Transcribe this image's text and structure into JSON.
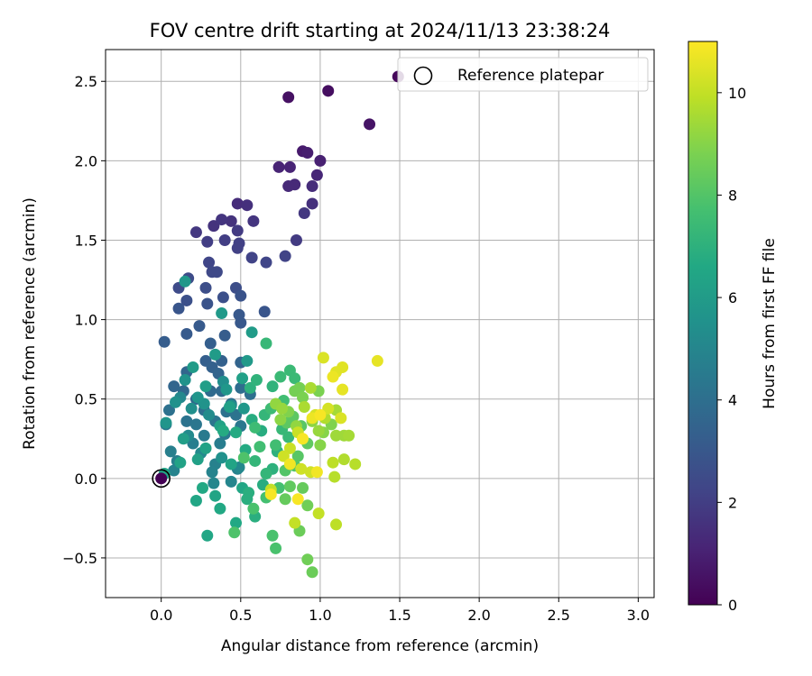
{
  "chart_data": {
    "type": "scatter",
    "title": "FOV centre drift starting at 2024/11/13 23:38:24",
    "xlabel": "Angular distance from reference (arcmin)",
    "ylabel": "Rotation from reference (arcmin)",
    "xlim": [
      -0.35,
      3.1
    ],
    "ylim": [
      -0.75,
      2.7
    ],
    "xticks": [
      "0.0",
      "0.5",
      "1.0",
      "1.5",
      "2.0",
      "2.5",
      "3.0"
    ],
    "xtick_values": [
      0,
      0.5,
      1.0,
      1.5,
      2.0,
      2.5,
      3.0
    ],
    "yticks": [
      "−0.5",
      "0.0",
      "0.5",
      "1.0",
      "1.5",
      "2.0",
      "2.5"
    ],
    "ytick_values": [
      -0.5,
      0,
      0.5,
      1.0,
      1.5,
      2.0,
      2.5
    ],
    "grid": true,
    "legend": {
      "position": "top-right",
      "entries": [
        {
          "label": "Reference platepar",
          "marker": "open-circle"
        }
      ]
    },
    "reference_point": {
      "x": 0.0,
      "y": 0.0
    },
    "colorbar": {
      "label": "Hours from first FF file",
      "range": [
        0,
        11
      ],
      "ticks": [
        "0",
        "2",
        "4",
        "6",
        "8",
        "10"
      ],
      "tick_values": [
        0,
        2,
        4,
        6,
        8,
        10
      ],
      "colormap": "viridis"
    },
    "points": [
      {
        "x": 1.49,
        "y": 2.53,
        "c": 0.2
      },
      {
        "x": 1.05,
        "y": 2.44,
        "c": 0.4
      },
      {
        "x": 0.8,
        "y": 2.4,
        "c": 0.5
      },
      {
        "x": 1.31,
        "y": 2.23,
        "c": 0.6
      },
      {
        "x": 0.89,
        "y": 2.06,
        "c": 0.8
      },
      {
        "x": 0.92,
        "y": 2.05,
        "c": 0.9
      },
      {
        "x": 1.0,
        "y": 2.0,
        "c": 1.0
      },
      {
        "x": 0.74,
        "y": 1.96,
        "c": 1.1
      },
      {
        "x": 0.81,
        "y": 1.96,
        "c": 1.1
      },
      {
        "x": 0.98,
        "y": 1.91,
        "c": 1.2
      },
      {
        "x": 0.84,
        "y": 1.85,
        "c": 1.3
      },
      {
        "x": 0.8,
        "y": 1.84,
        "c": 1.3
      },
      {
        "x": 0.95,
        "y": 1.84,
        "c": 1.4
      },
      {
        "x": 0.48,
        "y": 1.73,
        "c": 1.4
      },
      {
        "x": 0.54,
        "y": 1.72,
        "c": 1.5
      },
      {
        "x": 0.95,
        "y": 1.73,
        "c": 1.5
      },
      {
        "x": 0.44,
        "y": 1.62,
        "c": 1.6
      },
      {
        "x": 0.33,
        "y": 1.59,
        "c": 1.6
      },
      {
        "x": 0.38,
        "y": 1.63,
        "c": 1.7
      },
      {
        "x": 0.58,
        "y": 1.62,
        "c": 1.7
      },
      {
        "x": 0.9,
        "y": 1.67,
        "c": 1.8
      },
      {
        "x": 0.22,
        "y": 1.55,
        "c": 1.8
      },
      {
        "x": 0.48,
        "y": 1.56,
        "c": 1.9
      },
      {
        "x": 0.85,
        "y": 1.5,
        "c": 1.9
      },
      {
        "x": 0.29,
        "y": 1.49,
        "c": 2.0
      },
      {
        "x": 0.4,
        "y": 1.5,
        "c": 2.0
      },
      {
        "x": 0.49,
        "y": 1.48,
        "c": 2.1
      },
      {
        "x": 0.48,
        "y": 1.45,
        "c": 2.1
      },
      {
        "x": 0.78,
        "y": 1.4,
        "c": 2.2
      },
      {
        "x": 0.57,
        "y": 1.39,
        "c": 2.2
      },
      {
        "x": 0.3,
        "y": 1.36,
        "c": 2.3
      },
      {
        "x": 0.66,
        "y": 1.36,
        "c": 2.3
      },
      {
        "x": 0.32,
        "y": 1.3,
        "c": 2.4
      },
      {
        "x": 0.35,
        "y": 1.3,
        "c": 2.4
      },
      {
        "x": 0.17,
        "y": 1.26,
        "c": 2.5
      },
      {
        "x": 0.11,
        "y": 1.2,
        "c": 2.5
      },
      {
        "x": 0.28,
        "y": 1.2,
        "c": 2.6
      },
      {
        "x": 0.47,
        "y": 1.2,
        "c": 2.6
      },
      {
        "x": 0.16,
        "y": 1.12,
        "c": 2.7
      },
      {
        "x": 0.39,
        "y": 1.14,
        "c": 2.7
      },
      {
        "x": 0.5,
        "y": 1.15,
        "c": 2.8
      },
      {
        "x": 0.29,
        "y": 1.1,
        "c": 2.8
      },
      {
        "x": 0.11,
        "y": 1.07,
        "c": 2.9
      },
      {
        "x": 0.65,
        "y": 1.05,
        "c": 2.9
      },
      {
        "x": 0.49,
        "y": 1.03,
        "c": 3.0
      },
      {
        "x": 0.5,
        "y": 0.98,
        "c": 3.0
      },
      {
        "x": 0.24,
        "y": 0.96,
        "c": 3.1
      },
      {
        "x": 0.16,
        "y": 0.91,
        "c": 3.1
      },
      {
        "x": 0.4,
        "y": 0.9,
        "c": 3.2
      },
      {
        "x": 0.02,
        "y": 0.86,
        "c": 3.2
      },
      {
        "x": 0.31,
        "y": 0.85,
        "c": 3.3
      },
      {
        "x": 0.28,
        "y": 0.74,
        "c": 3.3
      },
      {
        "x": 0.38,
        "y": 0.74,
        "c": 3.4
      },
      {
        "x": 0.32,
        "y": 0.7,
        "c": 3.4
      },
      {
        "x": 0.36,
        "y": 0.66,
        "c": 3.5
      },
      {
        "x": 0.5,
        "y": 0.73,
        "c": 3.5
      },
      {
        "x": 0.16,
        "y": 0.67,
        "c": 3.6
      },
      {
        "x": 0.08,
        "y": 0.58,
        "c": 3.6
      },
      {
        "x": 0.14,
        "y": 0.55,
        "c": 3.7
      },
      {
        "x": 0.22,
        "y": 0.5,
        "c": 3.7
      },
      {
        "x": 0.31,
        "y": 0.55,
        "c": 3.8
      },
      {
        "x": 0.38,
        "y": 0.55,
        "c": 3.8
      },
      {
        "x": 0.5,
        "y": 0.57,
        "c": 3.9
      },
      {
        "x": 0.44,
        "y": 0.47,
        "c": 3.9
      },
      {
        "x": 0.56,
        "y": 0.53,
        "c": 4.0
      },
      {
        "x": 0.27,
        "y": 0.43,
        "c": 4.0
      },
      {
        "x": 0.41,
        "y": 0.42,
        "c": 4.1
      },
      {
        "x": 0.05,
        "y": 0.43,
        "c": 4.1
      },
      {
        "x": 0.47,
        "y": 0.4,
        "c": 4.2
      },
      {
        "x": 0.16,
        "y": 0.36,
        "c": 4.2
      },
      {
        "x": 0.22,
        "y": 0.34,
        "c": 4.3
      },
      {
        "x": 0.34,
        "y": 0.36,
        "c": 4.3
      },
      {
        "x": 0.5,
        "y": 0.33,
        "c": 4.4
      },
      {
        "x": 0.03,
        "y": 0.34,
        "c": 4.4
      },
      {
        "x": 0.27,
        "y": 0.27,
        "c": 4.5
      },
      {
        "x": 0.4,
        "y": 0.28,
        "c": 4.5
      },
      {
        "x": 0.2,
        "y": 0.22,
        "c": 4.6
      },
      {
        "x": 0.37,
        "y": 0.22,
        "c": 4.6
      },
      {
        "x": 0.06,
        "y": 0.17,
        "c": 4.7
      },
      {
        "x": 0.1,
        "y": 0.11,
        "c": 4.7
      },
      {
        "x": 0.34,
        "y": 0.09,
        "c": 4.8
      },
      {
        "x": 0.48,
        "y": 0.06,
        "c": 4.8
      },
      {
        "x": 0.08,
        "y": 0.05,
        "c": 4.9
      },
      {
        "x": 0.32,
        "y": 0.04,
        "c": 4.9
      },
      {
        "x": 0.44,
        "y": -0.02,
        "c": 5.0
      },
      {
        "x": 0.33,
        "y": -0.03,
        "c": 5.0
      },
      {
        "x": 0.49,
        "y": 0.07,
        "c": 5.1
      },
      {
        "x": 0.12,
        "y": 0.51,
        "c": 5.1
      },
      {
        "x": 0.17,
        "y": 0.27,
        "c": 5.2
      },
      {
        "x": 0.25,
        "y": 0.16,
        "c": 5.2
      },
      {
        "x": 0.3,
        "y": 0.4,
        "c": 5.3
      },
      {
        "x": 0.44,
        "y": 0.46,
        "c": 5.3
      },
      {
        "x": 0.19,
        "y": 0.44,
        "c": 5.4
      },
      {
        "x": 0.39,
        "y": 0.61,
        "c": 5.4
      },
      {
        "x": 0.09,
        "y": 0.48,
        "c": 5.5
      },
      {
        "x": 0.38,
        "y": 0.13,
        "c": 5.5
      },
      {
        "x": 0.27,
        "y": 0.47,
        "c": 5.6
      },
      {
        "x": 0.15,
        "y": 0.62,
        "c": 5.6
      },
      {
        "x": 0.23,
        "y": 0.51,
        "c": 5.7
      },
      {
        "x": 0.03,
        "y": 0.35,
        "c": 5.7
      },
      {
        "x": 0.52,
        "y": 0.44,
        "c": 5.8
      },
      {
        "x": 0.41,
        "y": 0.56,
        "c": 5.8
      },
      {
        "x": 0.15,
        "y": 1.24,
        "c": 5.8
      },
      {
        "x": 0.38,
        "y": 1.04,
        "c": 5.9
      },
      {
        "x": 0.54,
        "y": 0.74,
        "c": 5.9
      },
      {
        "x": 0.57,
        "y": 0.92,
        "c": 6.0
      },
      {
        "x": 0.2,
        "y": 0.7,
        "c": 6.0
      },
      {
        "x": 0.34,
        "y": 0.78,
        "c": 6.0
      },
      {
        "x": 0.28,
        "y": 0.58,
        "c": 6.1
      },
      {
        "x": 0.14,
        "y": 0.25,
        "c": 6.1
      },
      {
        "x": 0.23,
        "y": 0.12,
        "c": 6.2
      },
      {
        "x": 0.43,
        "y": 0.45,
        "c": 6.2
      },
      {
        "x": 0.51,
        "y": 0.63,
        "c": 6.2
      },
      {
        "x": 0.37,
        "y": 0.33,
        "c": 6.3
      },
      {
        "x": 0.28,
        "y": 0.19,
        "c": 6.3
      },
      {
        "x": 0.12,
        "y": 0.1,
        "c": 6.3
      },
      {
        "x": 0.44,
        "y": 0.09,
        "c": 6.4
      },
      {
        "x": 0.02,
        "y": 0.03,
        "c": 6.4
      },
      {
        "x": 0.34,
        "y": -0.11,
        "c": 6.4
      },
      {
        "x": 0.51,
        "y": -0.06,
        "c": 6.5
      },
      {
        "x": 0.22,
        "y": -0.14,
        "c": 6.5
      },
      {
        "x": 0.29,
        "y": -0.36,
        "c": 6.5
      },
      {
        "x": 0.47,
        "y": -0.28,
        "c": 6.6
      },
      {
        "x": 0.37,
        "y": -0.19,
        "c": 6.6
      },
      {
        "x": 0.26,
        "y": -0.06,
        "c": 6.6
      },
      {
        "x": 0.47,
        "y": 0.29,
        "c": 6.7
      },
      {
        "x": 0.39,
        "y": 0.3,
        "c": 6.7
      },
      {
        "x": 0.53,
        "y": 0.18,
        "c": 6.7
      },
      {
        "x": 0.57,
        "y": 0.37,
        "c": 6.8
      },
      {
        "x": 0.63,
        "y": 0.3,
        "c": 6.8
      },
      {
        "x": 0.64,
        "y": -0.04,
        "c": 6.8
      },
      {
        "x": 0.55,
        "y": -0.09,
        "c": 6.9
      },
      {
        "x": 0.54,
        "y": -0.13,
        "c": 6.9
      },
      {
        "x": 0.59,
        "y": -0.24,
        "c": 6.9
      },
      {
        "x": 0.7,
        "y": 0.06,
        "c": 7.0
      },
      {
        "x": 0.73,
        "y": 0.17,
        "c": 7.0
      },
      {
        "x": 0.56,
        "y": 0.57,
        "c": 7.0
      },
      {
        "x": 0.6,
        "y": 0.62,
        "c": 7.1
      },
      {
        "x": 0.7,
        "y": 0.58,
        "c": 7.1
      },
      {
        "x": 0.65,
        "y": 0.4,
        "c": 7.2
      },
      {
        "x": 0.59,
        "y": 0.11,
        "c": 7.2
      },
      {
        "x": 0.66,
        "y": 0.03,
        "c": 7.2
      },
      {
        "x": 0.76,
        "y": 0.31,
        "c": 7.3
      },
      {
        "x": 0.8,
        "y": 0.26,
        "c": 7.3
      },
      {
        "x": 0.66,
        "y": 0.85,
        "c": 7.3
      },
      {
        "x": 0.75,
        "y": 0.64,
        "c": 7.4
      },
      {
        "x": 0.81,
        "y": 0.68,
        "c": 7.4
      },
      {
        "x": 0.84,
        "y": 0.63,
        "c": 7.4
      },
      {
        "x": 0.59,
        "y": 0.32,
        "c": 7.5
      },
      {
        "x": 0.69,
        "y": 0.44,
        "c": 7.5
      },
      {
        "x": 0.72,
        "y": 0.21,
        "c": 7.6
      },
      {
        "x": 0.62,
        "y": 0.2,
        "c": 7.6
      },
      {
        "x": 0.77,
        "y": 0.49,
        "c": 7.6
      },
      {
        "x": 0.66,
        "y": -0.12,
        "c": 7.7
      },
      {
        "x": 0.74,
        "y": -0.06,
        "c": 7.7
      },
      {
        "x": 0.7,
        "y": -0.36,
        "c": 7.8
      },
      {
        "x": 0.72,
        "y": -0.44,
        "c": 7.8
      },
      {
        "x": 0.58,
        "y": -0.19,
        "c": 7.8
      },
      {
        "x": 0.46,
        "y": -0.34,
        "c": 7.9
      },
      {
        "x": 0.52,
        "y": 0.13,
        "c": 7.9
      },
      {
        "x": 0.78,
        "y": 0.05,
        "c": 8.0
      },
      {
        "x": 0.84,
        "y": 0.08,
        "c": 8.0
      },
      {
        "x": 0.86,
        "y": 0.14,
        "c": 8.1
      },
      {
        "x": 0.88,
        "y": 0.33,
        "c": 8.1
      },
      {
        "x": 0.79,
        "y": 0.35,
        "c": 8.2
      },
      {
        "x": 0.83,
        "y": 0.39,
        "c": 8.2
      },
      {
        "x": 0.92,
        "y": 0.22,
        "c": 8.3
      },
      {
        "x": 0.81,
        "y": -0.05,
        "c": 8.3
      },
      {
        "x": 0.78,
        "y": -0.13,
        "c": 8.4
      },
      {
        "x": 0.89,
        "y": -0.06,
        "c": 8.4
      },
      {
        "x": 0.95,
        "y": -0.59,
        "c": 8.5
      },
      {
        "x": 0.87,
        "y": -0.33,
        "c": 8.5
      },
      {
        "x": 0.92,
        "y": -0.51,
        "c": 8.6
      },
      {
        "x": 0.92,
        "y": -0.17,
        "c": 8.6
      },
      {
        "x": 0.84,
        "y": 0.55,
        "c": 8.7
      },
      {
        "x": 0.87,
        "y": 0.57,
        "c": 8.7
      },
      {
        "x": 0.89,
        "y": 0.51,
        "c": 8.8
      },
      {
        "x": 0.99,
        "y": 0.55,
        "c": 8.8
      },
      {
        "x": 0.8,
        "y": 0.42,
        "c": 8.9
      },
      {
        "x": 1.07,
        "y": 0.34,
        "c": 8.9
      },
      {
        "x": 1.0,
        "y": 0.21,
        "c": 9.0
      },
      {
        "x": 1.02,
        "y": 0.29,
        "c": 9.0
      },
      {
        "x": 0.75,
        "y": 0.37,
        "c": 9.1
      },
      {
        "x": 0.95,
        "y": 0.36,
        "c": 9.1
      },
      {
        "x": 0.85,
        "y": 0.33,
        "c": 9.2
      },
      {
        "x": 0.72,
        "y": 0.47,
        "c": 9.2
      },
      {
        "x": 0.76,
        "y": 0.44,
        "c": 9.3
      },
      {
        "x": 0.99,
        "y": 0.3,
        "c": 9.3
      },
      {
        "x": 1.1,
        "y": 0.27,
        "c": 9.4
      },
      {
        "x": 1.15,
        "y": 0.27,
        "c": 9.4
      },
      {
        "x": 1.18,
        "y": 0.27,
        "c": 9.5
      },
      {
        "x": 1.1,
        "y": 0.43,
        "c": 9.5
      },
      {
        "x": 0.9,
        "y": 0.45,
        "c": 9.6
      },
      {
        "x": 0.94,
        "y": 0.57,
        "c": 9.6
      },
      {
        "x": 1.03,
        "y": 0.38,
        "c": 9.7
      },
      {
        "x": 1.15,
        "y": 0.12,
        "c": 9.7
      },
      {
        "x": 1.22,
        "y": 0.09,
        "c": 9.8
      },
      {
        "x": 1.09,
        "y": 0.01,
        "c": 9.8
      },
      {
        "x": 1.08,
        "y": 0.1,
        "c": 9.9
      },
      {
        "x": 1.1,
        "y": -0.29,
        "c": 9.9
      },
      {
        "x": 0.99,
        "y": -0.22,
        "c": 10.0
      },
      {
        "x": 0.84,
        "y": -0.28,
        "c": 10.0
      },
      {
        "x": 0.69,
        "y": -0.07,
        "c": 10.0
      },
      {
        "x": 0.81,
        "y": 0.19,
        "c": 10.1
      },
      {
        "x": 0.86,
        "y": 0.29,
        "c": 10.1
      },
      {
        "x": 0.77,
        "y": 0.14,
        "c": 10.2
      },
      {
        "x": 0.94,
        "y": 0.04,
        "c": 10.2
      },
      {
        "x": 0.88,
        "y": 0.06,
        "c": 10.2
      },
      {
        "x": 0.97,
        "y": 0.4,
        "c": 10.3
      },
      {
        "x": 1.05,
        "y": 0.44,
        "c": 10.3
      },
      {
        "x": 1.13,
        "y": 0.38,
        "c": 10.4
      },
      {
        "x": 1.02,
        "y": 0.76,
        "c": 10.4
      },
      {
        "x": 1.14,
        "y": 0.7,
        "c": 10.5
      },
      {
        "x": 1.1,
        "y": 0.67,
        "c": 10.5
      },
      {
        "x": 1.14,
        "y": 0.56,
        "c": 10.6
      },
      {
        "x": 1.36,
        "y": 0.74,
        "c": 10.6
      },
      {
        "x": 1.08,
        "y": 0.64,
        "c": 10.7
      },
      {
        "x": 0.95,
        "y": 0.38,
        "c": 10.7
      },
      {
        "x": 0.98,
        "y": 0.04,
        "c": 10.8
      },
      {
        "x": 0.81,
        "y": 0.09,
        "c": 10.8
      },
      {
        "x": 0.89,
        "y": 0.25,
        "c": 10.9
      },
      {
        "x": 0.86,
        "y": -0.13,
        "c": 10.9
      },
      {
        "x": 0.69,
        "y": -0.1,
        "c": 10.9
      },
      {
        "x": 1.0,
        "y": 0.4,
        "c": 10.9
      }
    ]
  }
}
